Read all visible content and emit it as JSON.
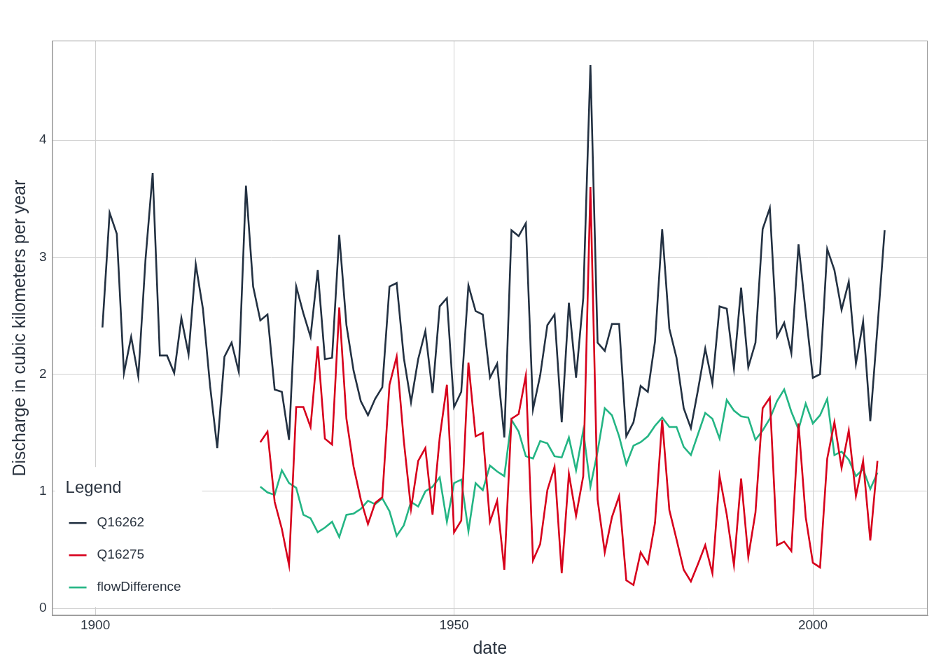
{
  "chart_data": {
    "type": "line",
    "x_label": "date",
    "y_label": "Discharge in cubic kilometers per year",
    "legend_title": "Legend",
    "legend": "lower left",
    "grid": true,
    "xlim": [
      1894,
      2016
    ],
    "xticks": [
      1900,
      1950,
      2000
    ],
    "ylim": [
      -0.06,
      4.85
    ],
    "yticks": [
      0,
      1,
      2,
      3,
      4
    ],
    "x": [
      1901,
      1902,
      1903,
      1904,
      1905,
      1906,
      1907,
      1908,
      1909,
      1910,
      1911,
      1912,
      1913,
      1914,
      1915,
      1916,
      1917,
      1918,
      1919,
      1920,
      1921,
      1922,
      1923,
      1924,
      1925,
      1926,
      1927,
      1928,
      1929,
      1930,
      1931,
      1932,
      1933,
      1934,
      1935,
      1936,
      1937,
      1938,
      1939,
      1940,
      1941,
      1942,
      1943,
      1944,
      1945,
      1946,
      1947,
      1948,
      1949,
      1950,
      1951,
      1952,
      1953,
      1954,
      1955,
      1956,
      1957,
      1958,
      1959,
      1960,
      1961,
      1962,
      1963,
      1964,
      1965,
      1966,
      1967,
      1968,
      1969,
      1970,
      1971,
      1972,
      1973,
      1974,
      1975,
      1976,
      1977,
      1978,
      1979,
      1980,
      1981,
      1982,
      1983,
      1984,
      1985,
      1986,
      1987,
      1988,
      1989,
      1990,
      1991,
      1992,
      1993,
      1994,
      1995,
      1996,
      1997,
      1998,
      1999,
      2000,
      2001,
      2002,
      2003,
      2004,
      2005,
      2006,
      2007,
      2008,
      2009,
      2010
    ],
    "series": [
      {
        "name": "Q16262",
        "color": "#233142",
        "values": [
          2.4,
          3.38,
          3.2,
          2.01,
          2.32,
          1.98,
          2.98,
          3.72,
          2.16,
          2.16,
          2.01,
          2.48,
          2.17,
          2.94,
          2.56,
          1.9,
          1.37,
          2.15,
          2.27,
          2.02,
          3.61,
          2.75,
          2.46,
          2.51,
          1.87,
          1.85,
          1.44,
          2.75,
          2.52,
          2.32,
          2.89,
          2.13,
          2.14,
          3.19,
          2.42,
          2.03,
          1.77,
          1.65,
          1.79,
          1.89,
          2.75,
          2.78,
          2.14,
          1.76,
          2.13,
          2.37,
          1.84,
          2.58,
          2.65,
          1.72,
          1.85,
          2.76,
          2.54,
          2.51,
          1.97,
          2.09,
          1.46,
          3.23,
          3.18,
          3.29,
          1.7,
          1.99,
          2.42,
          2.51,
          1.59,
          2.61,
          1.97,
          2.65,
          4.64,
          2.27,
          2.2,
          2.43,
          2.43,
          1.47,
          1.59,
          1.9,
          1.85,
          2.28,
          3.24,
          2.39,
          2.14,
          1.71,
          1.54,
          1.87,
          2.22,
          1.92,
          2.58,
          2.56,
          2.05,
          2.74,
          2.06,
          2.27,
          3.24,
          3.42,
          2.32,
          2.44,
          2.18,
          3.11,
          2.53,
          1.97,
          2.0,
          3.07,
          2.89,
          2.55,
          2.79,
          2.09,
          2.45,
          1.6,
          2.4,
          3.23
        ]
      },
      {
        "name": "Q16275",
        "color": "#d7001c",
        "values": [
          null,
          null,
          null,
          null,
          null,
          null,
          null,
          null,
          null,
          null,
          null,
          null,
          null,
          null,
          null,
          null,
          null,
          null,
          null,
          null,
          null,
          null,
          1.42,
          1.51,
          0.91,
          0.68,
          0.37,
          1.72,
          1.72,
          1.55,
          2.24,
          1.45,
          1.4,
          2.57,
          1.62,
          1.21,
          0.93,
          0.72,
          0.9,
          0.95,
          1.91,
          2.15,
          1.43,
          0.85,
          1.26,
          1.37,
          0.8,
          1.46,
          1.91,
          0.65,
          0.75,
          2.1,
          1.47,
          1.5,
          0.74,
          0.92,
          0.33,
          1.62,
          1.66,
          1.99,
          0.41,
          0.55,
          1.01,
          1.21,
          0.3,
          1.15,
          0.79,
          1.13,
          3.6,
          0.93,
          0.48,
          0.78,
          0.96,
          0.24,
          0.2,
          0.48,
          0.38,
          0.73,
          1.61,
          0.84,
          0.59,
          0.33,
          0.23,
          0.38,
          0.54,
          0.3,
          1.13,
          0.8,
          0.37,
          1.11,
          0.44,
          0.82,
          1.71,
          1.8,
          0.54,
          0.57,
          0.49,
          1.58,
          0.78,
          0.39,
          0.35,
          1.28,
          1.59,
          1.2,
          1.52,
          0.96,
          1.26,
          0.58,
          1.26,
          null
        ]
      },
      {
        "name": "flowDifference",
        "color": "#24b584",
        "values": [
          null,
          null,
          null,
          null,
          null,
          null,
          null,
          null,
          null,
          null,
          null,
          null,
          null,
          null,
          null,
          null,
          null,
          null,
          null,
          null,
          null,
          null,
          1.04,
          0.99,
          0.97,
          1.18,
          1.07,
          1.03,
          0.8,
          0.77,
          0.65,
          0.69,
          0.74,
          0.61,
          0.8,
          0.81,
          0.85,
          0.92,
          0.89,
          0.94,
          0.83,
          0.62,
          0.71,
          0.91,
          0.87,
          1.0,
          1.04,
          1.12,
          0.74,
          1.07,
          1.1,
          0.66,
          1.07,
          1.01,
          1.22,
          1.17,
          1.13,
          1.61,
          1.51,
          1.3,
          1.28,
          1.43,
          1.41,
          1.3,
          1.29,
          1.46,
          1.18,
          1.52,
          1.04,
          1.34,
          1.71,
          1.65,
          1.47,
          1.23,
          1.39,
          1.42,
          1.47,
          1.56,
          1.63,
          1.55,
          1.55,
          1.38,
          1.31,
          1.49,
          1.67,
          1.62,
          1.45,
          1.78,
          1.69,
          1.64,
          1.63,
          1.44,
          1.52,
          1.62,
          1.77,
          1.87,
          1.68,
          1.53,
          1.75,
          1.58,
          1.65,
          1.79,
          1.31,
          1.34,
          1.27,
          1.13,
          1.19,
          1.02,
          1.16,
          null
        ]
      }
    ]
  }
}
